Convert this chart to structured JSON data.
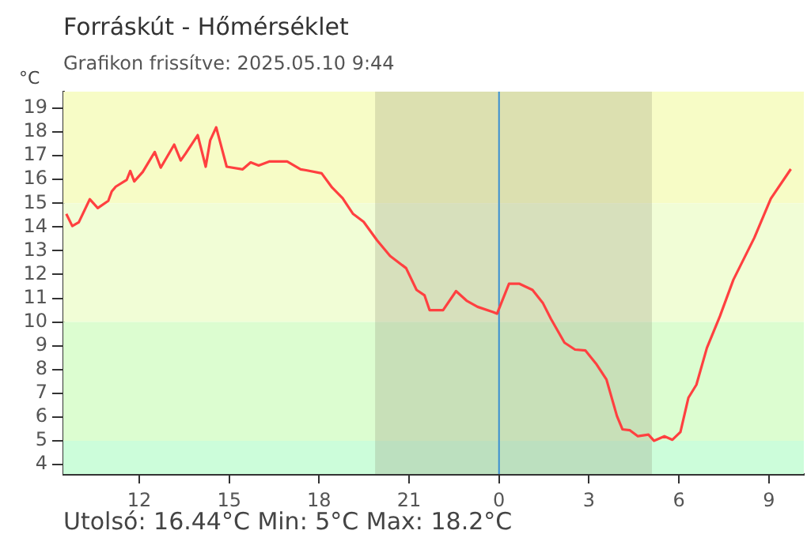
{
  "chart_data": {
    "type": "line",
    "title": "Forráskút - Hőmérséklet",
    "subtitle": "Grafikon frissítve: 2025.05.10 9:44",
    "ylabel": "°C",
    "annotations": [
      "Utolsó: 16.44°C  Min: 5°C  Max: 18.2°C"
    ],
    "xlim": [
      "2025-05-09T09:28",
      "2025-05-10T10:10"
    ],
    "xticks": [
      {
        "value": "2025-05-09T12:00",
        "label": "12"
      },
      {
        "value": "2025-05-09T15:00",
        "label": "15"
      },
      {
        "value": "2025-05-09T18:00",
        "label": "18"
      },
      {
        "value": "2025-05-09T21:00",
        "label": "21"
      },
      {
        "value": "2025-05-10T00:00",
        "label": "0"
      },
      {
        "value": "2025-05-10T03:00",
        "label": "3"
      },
      {
        "value": "2025-05-10T06:00",
        "label": "6"
      },
      {
        "value": "2025-05-10T09:00",
        "label": "9"
      }
    ],
    "ylim": [
      3.6,
      19.7
    ],
    "yticks": [
      4,
      5,
      6,
      7,
      8,
      9,
      10,
      11,
      12,
      13,
      14,
      15,
      16,
      17,
      18,
      19
    ],
    "grid": false,
    "legend": false,
    "marker": "none",
    "line_style": "solid",
    "bands": [
      {
        "axis": "y",
        "from": 15,
        "to": 19.7,
        "color": "#f7fcc6"
      },
      {
        "axis": "y",
        "from": 10,
        "to": 15,
        "color": "#f1fdd6"
      },
      {
        "axis": "y",
        "from": 5,
        "to": 10,
        "color": "#dcfdd0"
      },
      {
        "axis": "y",
        "from": 3.6,
        "to": 5,
        "color": "#ccfdda"
      },
      {
        "axis": "x",
        "from": "2025-05-09T19:52",
        "to": "2025-05-10T05:06",
        "color": "#8a8a70"
      }
    ],
    "ref_lines": [
      {
        "axis": "x",
        "value": "2025-05-10T00:00",
        "color": "#3a8fd0"
      }
    ],
    "x": [
      "2025-05-09T09:34",
      "2025-05-09T09:46",
      "2025-05-09T09:59",
      "2025-05-09T10:21",
      "2025-05-09T10:37",
      "2025-05-09T10:58",
      "2025-05-09T11:05",
      "2025-05-09T11:13",
      "2025-05-09T11:35",
      "2025-05-09T11:42",
      "2025-05-09T11:50",
      "2025-05-09T12:07",
      "2025-05-09T12:31",
      "2025-05-09T12:43",
      "2025-05-09T13:10",
      "2025-05-09T13:23",
      "2025-05-09T13:33",
      "2025-05-09T13:57",
      "2025-05-09T14:13",
      "2025-05-09T14:22",
      "2025-05-09T14:34",
      "2025-05-09T14:55",
      "2025-05-09T15:27",
      "2025-05-09T15:43",
      "2025-05-09T15:59",
      "2025-05-09T16:20",
      "2025-05-09T16:56",
      "2025-05-09T17:23",
      "2025-05-09T17:34",
      "2025-05-09T18:05",
      "2025-05-09T18:26",
      "2025-05-09T18:47",
      "2025-05-09T19:08",
      "2025-05-09T19:29",
      "2025-05-09T19:56",
      "2025-05-09T20:22",
      "2025-05-09T20:54",
      "2025-05-09T21:15",
      "2025-05-09T21:31",
      "2025-05-09T21:41",
      "2025-05-09T22:08",
      "2025-05-09T22:34",
      "2025-05-09T22:55",
      "2025-05-09T23:17",
      "2025-05-09T23:48",
      "2025-05-09T23:56",
      "2025-05-10T00:20",
      "2025-05-10T00:41",
      "2025-05-10T01:07",
      "2025-05-10T01:28",
      "2025-05-10T01:44",
      "2025-05-10T02:11",
      "2025-05-10T02:32",
      "2025-05-10T02:53",
      "2025-05-10T03:14",
      "2025-05-10T03:35",
      "2025-05-10T03:56",
      "2025-05-10T04:07",
      "2025-05-10T04:22",
      "2025-05-10T04:38",
      "2025-05-10T04:59",
      "2025-05-10T05:10",
      "2025-05-10T05:31",
      "2025-05-10T05:47",
      "2025-05-10T06:03",
      "2025-05-10T06:19",
      "2025-05-10T06:35",
      "2025-05-10T06:56",
      "2025-05-10T07:22",
      "2025-05-10T07:49",
      "2025-05-10T08:31",
      "2025-05-10T09:04",
      "2025-05-10T09:44"
    ],
    "series": [
      {
        "color": "#ff4040",
        "values": [
          14.55,
          14.04,
          14.2,
          15.17,
          14.8,
          15.1,
          15.5,
          15.7,
          15.99,
          16.36,
          15.92,
          16.32,
          17.16,
          16.5,
          17.47,
          16.8,
          17.1,
          17.87,
          16.54,
          17.65,
          18.2,
          16.54,
          16.43,
          16.72,
          16.59,
          16.76,
          16.76,
          16.43,
          16.39,
          16.26,
          15.66,
          15.21,
          14.55,
          14.22,
          13.44,
          12.78,
          12.27,
          11.35,
          11.12,
          10.5,
          10.5,
          11.3,
          10.9,
          10.64,
          10.42,
          10.35,
          11.61,
          11.61,
          11.35,
          10.79,
          10.13,
          9.13,
          8.84,
          8.8,
          8.25,
          7.58,
          6.04,
          5.48,
          5.44,
          5.19,
          5.26,
          5.0,
          5.19,
          5.04,
          5.37,
          6.81,
          7.36,
          8.91,
          10.24,
          11.78,
          13.55,
          15.2,
          16.44
        ]
      }
    ]
  }
}
